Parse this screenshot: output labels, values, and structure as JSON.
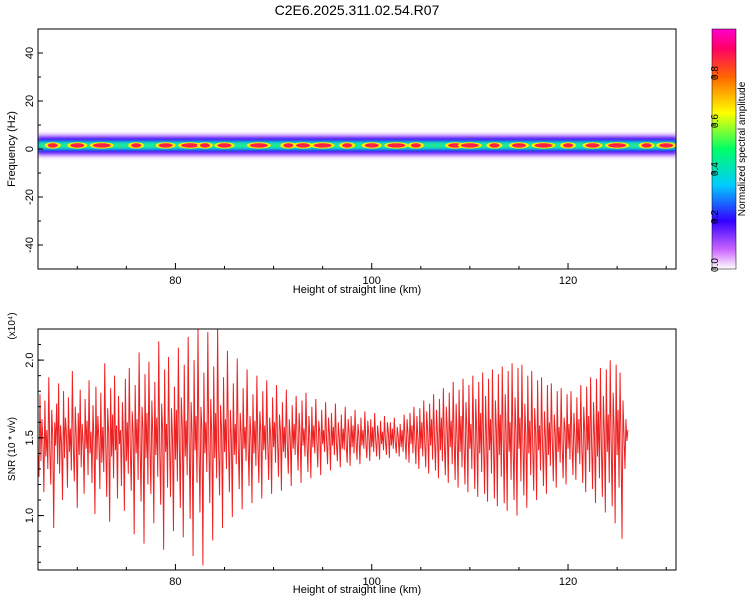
{
  "title": "C2E6.2025.311.02.54.R07",
  "chart_data": [
    {
      "type": "heatmap",
      "xlabel": "Height of straight line (km)",
      "ylabel": "Frequency (Hz)",
      "xlim": [
        66,
        131
      ],
      "ylim": [
        -50,
        50
      ],
      "x_ticks": [
        80,
        100,
        120
      ],
      "y_ticks": [
        40,
        20,
        0,
        -20,
        -40
      ],
      "y_tick_labels": [
        "40",
        "20",
        "0",
        "-20",
        "-40"
      ],
      "colorbar": {
        "label": "Normalized spectral amplitude",
        "range": [
          0.0,
          1.0
        ],
        "ticks": [
          0.0,
          0.2,
          0.4,
          0.6,
          0.8
        ],
        "tick_labels": [
          "0.0",
          "0.2",
          "0.4",
          "0.6",
          "0.8"
        ],
        "colors": [
          "#ffffff",
          "#cc66ff",
          "#3300ff",
          "#00ccff",
          "#00ff66",
          "#ffff00",
          "#ff6600",
          "#ff0066",
          "#ff00cc"
        ]
      },
      "band": {
        "center_freq_hz": 1.5,
        "core_half_width_hz": 1.5,
        "outer_half_width_hz": 5,
        "peak_heights_km": [
          67.5,
          70,
          72.5,
          76,
          79,
          81.5,
          83,
          85,
          88.5,
          91.5,
          93,
          95,
          97.5,
          100,
          102.5,
          104.5,
          108.5,
          110,
          112.5,
          115,
          117.5,
          120,
          122.5,
          125,
          128,
          130
        ]
      }
    },
    {
      "type": "line",
      "xlabel": "Height of straight line (km)",
      "ylabel": "SNR (10 * v/v)",
      "y_multiplier": "(x10⁴)",
      "xlim": [
        66,
        131
      ],
      "ylim": [
        0.65,
        2.2
      ],
      "x_ticks": [
        80,
        100,
        120
      ],
      "y_ticks": [
        1.0,
        1.5,
        2.0
      ],
      "y_tick_labels": [
        "1.0",
        "1.5",
        "2.0"
      ],
      "series": [
        {
          "color": "#ee2222",
          "x_start": 66,
          "x_step": 0.1,
          "values": [
            1.4,
            1.25,
            1.78,
            1.35,
            1.62,
            1.48,
            1.15,
            1.74,
            1.38,
            1.55,
            1.3,
            1.89,
            1.42,
            1.2,
            1.68,
            1.51,
            0.92,
            1.6,
            1.45,
            1.72,
            1.33,
            1.85,
            1.27,
            1.58,
            1.46,
            1.1,
            1.8,
            1.37,
            1.63,
            1.52,
            1.18,
            1.76,
            1.41,
            1.56,
            1.29,
            1.93,
            1.44,
            1.22,
            1.7,
            1.5,
            1.05,
            1.66,
            1.39,
            1.81,
            1.31,
            1.59,
            1.47,
            1.14,
            1.75,
            1.43,
            1.61,
            1.26,
            1.87,
            1.4,
            1.54,
            1.21,
            1.71,
            1.48,
            1.01,
            1.83,
            1.36,
            1.64,
            1.49,
            1.17,
            1.79,
            1.34,
            1.57,
            1.28,
            1.98,
            1.45,
            1.12,
            1.69,
            1.53,
            0.96,
            1.82,
            1.38,
            1.65,
            1.24,
            1.9,
            1.42,
            1.58,
            1.11,
            1.77,
            1.46,
            1.55,
            1.19,
            1.73,
            1.5,
            1.03,
            1.88,
            1.35,
            1.6,
            1.27,
            1.95,
            1.44,
            1.16,
            1.67,
            1.52,
            0.88,
            1.84,
            1.4,
            1.62,
            1.23,
            2.05,
            1.47,
            1.09,
            1.7,
            1.55,
            0.82,
            1.91,
            1.37,
            1.66,
            1.2,
            1.99,
            1.45,
            1.14,
            1.74,
            1.51,
            0.95,
            1.86,
            1.39,
            1.63,
            1.25,
            2.12,
            1.43,
            1.07,
            1.72,
            1.54,
            0.78,
            1.94,
            1.41,
            1.59,
            1.18,
            2.02,
            1.46,
            1.12,
            1.69,
            1.5,
            0.9,
            1.83,
            1.36,
            1.68,
            1.22,
            2.08,
            1.44,
            1.05,
            1.76,
            1.57,
            0.86,
            1.97,
            1.38,
            1.61,
            1.26,
            2.15,
            1.48,
            0.98,
            1.73,
            1.53,
            0.74,
            2.0,
            1.42,
            1.64,
            1.21,
            2.2,
            1.45,
            1.02,
            1.7,
            1.56,
            0.68,
            1.92,
            1.4,
            1.6,
            1.28,
            2.18,
            1.47,
            1.08,
            1.75,
            1.52,
            0.84,
            1.96,
            1.37,
            1.66,
            1.24,
            2.22,
            1.44,
            1.13,
            1.71,
            1.55,
            0.92,
            1.89,
            1.41,
            1.62,
            1.3,
            2.06,
            1.49,
            1.15,
            1.68,
            1.5,
            0.99,
            1.85,
            1.39,
            1.59,
            1.33,
            2.01,
            1.46,
            1.17,
            1.66,
            1.53,
            1.04,
            1.82,
            1.43,
            1.57,
            1.35,
            1.94,
            1.48,
            1.19,
            1.64,
            1.51,
            1.08,
            1.78,
            1.4,
            1.61,
            1.32,
            1.9,
            1.45,
            1.21,
            1.67,
            1.54,
            1.11,
            1.8,
            1.42,
            1.58,
            1.36,
            1.87,
            1.47,
            1.23,
            1.63,
            1.52,
            1.14,
            1.76,
            1.44,
            1.6,
            1.34,
            1.84,
            1.49,
            1.25,
            1.65,
            1.55,
            1.16,
            1.73,
            1.41,
            1.57,
            1.37,
            1.81,
            1.46,
            1.27,
            1.62,
            1.5,
            1.19,
            1.71,
            1.43,
            1.59,
            1.39,
            1.77,
            1.48,
            1.29,
            1.66,
            1.53,
            1.21,
            1.74,
            1.45,
            1.56,
            1.38,
            1.79,
            1.47,
            1.28,
            1.64,
            1.51,
            1.24,
            1.7,
            1.44,
            1.58,
            1.4,
            1.75,
            1.49,
            1.31,
            1.61,
            1.54,
            1.26,
            1.68,
            1.46,
            1.55,
            1.41,
            1.73,
            1.48,
            1.33,
            1.63,
            1.52,
            1.29,
            1.66,
            1.45,
            1.57,
            1.39,
            1.72,
            1.47,
            1.35,
            1.6,
            1.5,
            1.31,
            1.65,
            1.43,
            1.56,
            1.42,
            1.7,
            1.46,
            1.34,
            1.62,
            1.53,
            1.32,
            1.64,
            1.44,
            1.58,
            1.4,
            1.68,
            1.48,
            1.36,
            1.59,
            1.51,
            1.33,
            1.63,
            1.45,
            1.55,
            1.43,
            1.67,
            1.47,
            1.37,
            1.61,
            1.52,
            1.35,
            1.62,
            1.44,
            1.57,
            1.41,
            1.66,
            1.49,
            1.38,
            1.58,
            1.5,
            1.36,
            1.61,
            1.46,
            1.54,
            1.42,
            1.64,
            1.48,
            1.39,
            1.6,
            1.53,
            1.37,
            1.6,
            1.45,
            1.56,
            1.43,
            1.63,
            1.47,
            1.4,
            1.57,
            1.51,
            1.38,
            1.59,
            1.44,
            1.55,
            1.41,
            1.65,
            1.49,
            1.36,
            1.62,
            1.52,
            1.34,
            1.66,
            1.46,
            1.58,
            1.4,
            1.7,
            1.48,
            1.33,
            1.64,
            1.5,
            1.3,
            1.69,
            1.43,
            1.6,
            1.38,
            1.74,
            1.47,
            1.31,
            1.67,
            1.54,
            1.27,
            1.72,
            1.45,
            1.62,
            1.36,
            1.78,
            1.49,
            1.29,
            1.68,
            1.52,
            1.24,
            1.75,
            1.42,
            1.63,
            1.35,
            1.82,
            1.46,
            1.26,
            1.7,
            1.55,
            1.21,
            1.79,
            1.44,
            1.61,
            1.33,
            1.86,
            1.48,
            1.23,
            1.72,
            1.51,
            1.18,
            1.81,
            1.41,
            1.64,
            1.31,
            1.88,
            1.45,
            1.2,
            1.73,
            1.56,
            1.15,
            1.84,
            1.43,
            1.59,
            1.3,
            1.9,
            1.47,
            1.17,
            1.75,
            1.53,
            1.12,
            1.86,
            1.4,
            1.66,
            1.28,
            1.92,
            1.44,
            1.14,
            1.77,
            1.5,
            1.09,
            1.88,
            1.42,
            1.62,
            1.27,
            1.94,
            1.46,
            1.11,
            1.74,
            1.55,
            1.06,
            1.91,
            1.39,
            1.65,
            1.25,
            1.96,
            1.48,
            1.08,
            1.78,
            1.52,
            1.03,
            1.93,
            1.41,
            1.6,
            1.23,
            1.98,
            1.45,
            1.1,
            1.76,
            1.54,
            1.0,
            1.95,
            1.43,
            1.63,
            1.22,
            1.97,
            1.47,
            1.13,
            1.72,
            1.51,
            1.05,
            1.9,
            1.4,
            1.61,
            1.26,
            1.93,
            1.44,
            1.16,
            1.69,
            1.53,
            1.1,
            1.87,
            1.42,
            1.58,
            1.29,
            1.89,
            1.46,
            1.19,
            1.67,
            1.5,
            1.14,
            1.84,
            1.39,
            1.6,
            1.32,
            1.85,
            1.48,
            1.22,
            1.65,
            1.52,
            1.18,
            1.8,
            1.41,
            1.57,
            1.34,
            1.82,
            1.45,
            1.24,
            1.63,
            1.55,
            1.2,
            1.78,
            1.43,
            1.59,
            1.36,
            1.8,
            1.47,
            1.26,
            1.66,
            1.51,
            1.23,
            1.76,
            1.4,
            1.62,
            1.33,
            1.84,
            1.44,
            1.21,
            1.7,
            1.54,
            1.15,
            1.83,
            1.42,
            1.64,
            1.28,
            1.89,
            1.46,
            1.17,
            1.73,
            1.5,
            1.08,
            1.88,
            1.38,
            1.67,
            1.24,
            1.95,
            1.43,
            1.12,
            1.77,
            1.53,
            1.02,
            1.94,
            1.41,
            1.65,
            1.21,
            2.0,
            1.45,
            1.06,
            1.79,
            1.55,
            0.95,
            1.97,
            1.39,
            1.68,
            1.18,
            1.92,
            1.47,
            0.85,
            1.74,
            1.52,
            1.3,
            1.62,
            1.48,
            1.55
          ]
        }
      ]
    }
  ]
}
